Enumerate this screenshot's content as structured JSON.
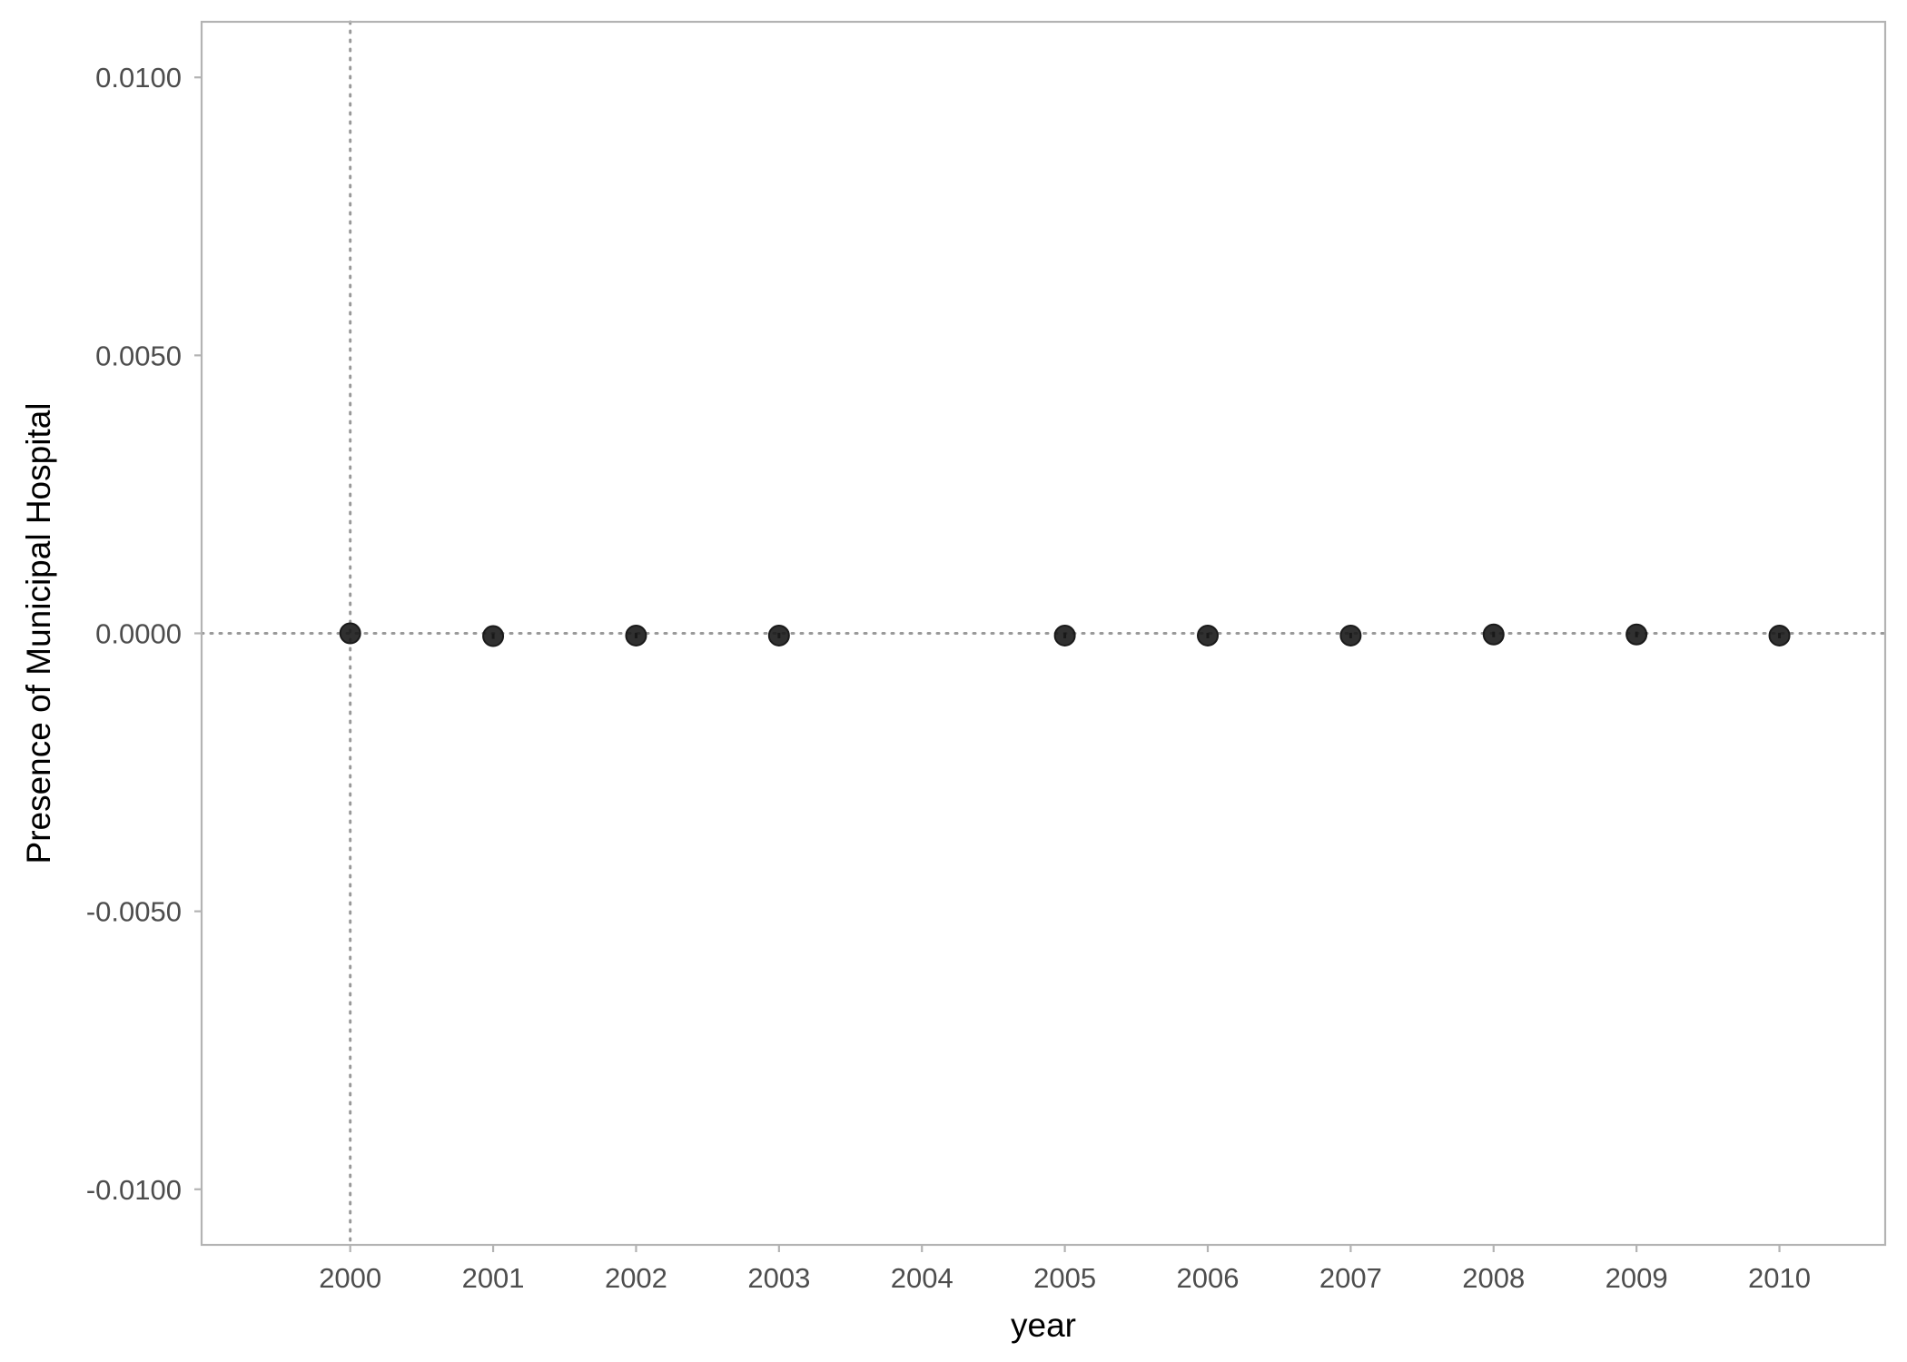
{
  "chart_data": {
    "type": "scatter",
    "title": "",
    "xlabel": "year",
    "ylabel": "Presence of Municipal Hospital",
    "x_ticks": [
      "2000",
      "2001",
      "2002",
      "2003",
      "2004",
      "2005",
      "2006",
      "2007",
      "2008",
      "2009",
      "2010"
    ],
    "y_ticks": [
      "0.0100",
      "0.0050",
      "0.0000",
      "-0.0050",
      "-0.0100"
    ],
    "xlim": [
      1998.96,
      2010.74
    ],
    "ylim": [
      -0.011,
      0.011
    ],
    "grid": false,
    "reference_lines": {
      "vertical_x": 2000,
      "horizontal_y": 0
    },
    "series": [
      {
        "x": [
          2000,
          2001,
          2002,
          2003,
          2005,
          2006,
          2007,
          2008,
          2009,
          2010
        ],
        "y": [
          0.0,
          -5e-05,
          -4e-05,
          -4e-05,
          -4e-05,
          -4e-05,
          -4e-05,
          -2e-05,
          -2e-05,
          -4e-05
        ],
        "ci_low": [
          0.0,
          -0.0001,
          -9e-05,
          -9e-05,
          -9e-05,
          -9e-05,
          -9e-05,
          -7e-05,
          -7e-05,
          -9e-05
        ],
        "ci_high": [
          0.0,
          0.0,
          1e-05,
          1e-05,
          1e-05,
          1e-05,
          1e-05,
          3e-05,
          3e-05,
          1e-05
        ]
      }
    ],
    "colors": {
      "point": "#1a1a1a",
      "panel_border": "#b3b3b3",
      "reference_line": "#999999",
      "tick_text": "#4d4d4d"
    }
  }
}
